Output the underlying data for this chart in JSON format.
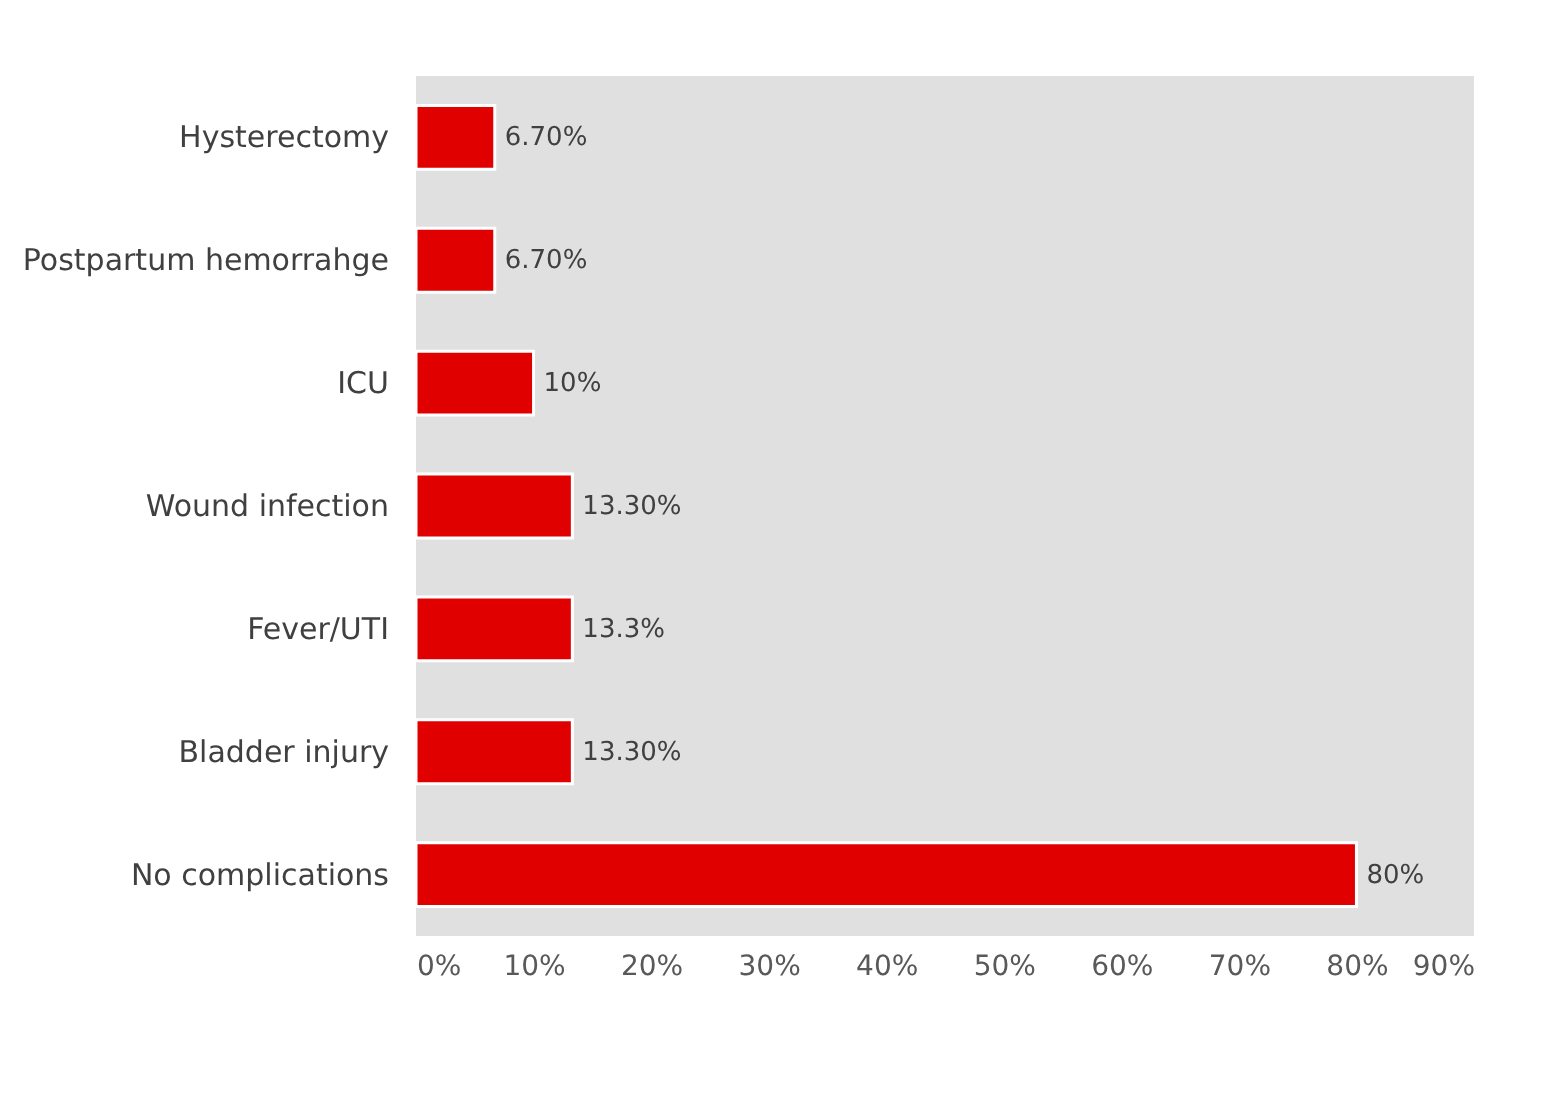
{
  "chart_data": {
    "type": "bar",
    "orientation": "horizontal",
    "categories": [
      "Hysterectomy",
      "Postpartum hemorrahge",
      "ICU",
      "Wound infection",
      "Fever/UTI",
      "Bladder injury",
      "No complications"
    ],
    "values": [
      6.7,
      6.7,
      10,
      13.3,
      13.3,
      13.3,
      80
    ],
    "value_labels": [
      "6.70%",
      "6.70%",
      "10%",
      "13.30%",
      "13.3%",
      "13.30%",
      "80%"
    ],
    "color": "#e00000",
    "xlim": [
      0,
      90
    ],
    "xticks": [
      {
        "value": 0,
        "label": "0%"
      },
      {
        "value": 10,
        "label": "10%"
      },
      {
        "value": 20,
        "label": "20%"
      },
      {
        "value": 30,
        "label": "30%"
      },
      {
        "value": 40,
        "label": "40%"
      },
      {
        "value": 50,
        "label": "50%"
      },
      {
        "value": 60,
        "label": "60%"
      },
      {
        "value": 70,
        "label": "70%"
      },
      {
        "value": 80,
        "label": "80%"
      },
      {
        "value": 90,
        "label": "90%"
      }
    ],
    "grid": false
  }
}
